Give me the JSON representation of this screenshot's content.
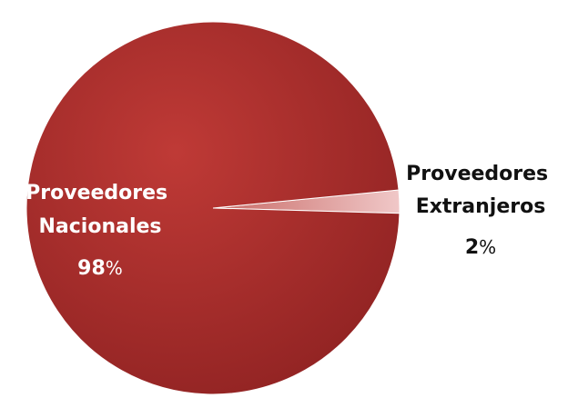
{
  "colors": {
    "slice_main": "#b03030",
    "slice_small": "#e8b0b0",
    "label_inside": "#ffffff",
    "label_outside": "#111111"
  },
  "chart_data": {
    "type": "pie",
    "categories": [
      "Proveedores Nacionales",
      "Proveedores Extranjeros"
    ],
    "values": [
      98,
      2
    ],
    "value_suffix": "%",
    "labels": [
      {
        "lines": [
          "Proveedores",
          "Nacionales"
        ],
        "value": "98",
        "unit": "%"
      },
      {
        "lines": [
          "Proveedores",
          "Extranjeros"
        ],
        "value": "2",
        "unit": "%"
      }
    ]
  }
}
